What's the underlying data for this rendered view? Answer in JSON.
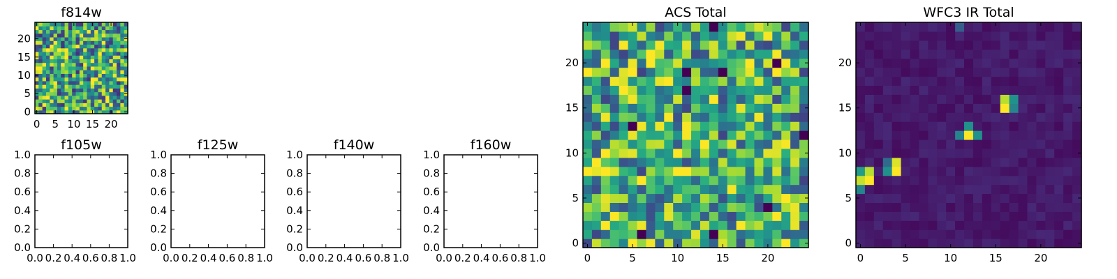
{
  "chart_data": [
    {
      "type": "heatmap",
      "title": "f814w",
      "xlim": [
        -0.5,
        24.5
      ],
      "ylim": [
        -0.5,
        24.5
      ],
      "xticks": [
        0,
        5,
        10,
        15,
        20
      ],
      "yticks": [
        0,
        5,
        10,
        15,
        20
      ],
      "grid_size": 25,
      "colormap": "viridis",
      "pattern": "random noise, high values",
      "seed": 814,
      "base": 0.6,
      "spread": 0.45
    },
    {
      "type": "empty",
      "title": "f105w",
      "xlim": [
        0,
        1
      ],
      "ylim": [
        0,
        1
      ],
      "xticks": [
        "0.0",
        "0.2",
        "0.4",
        "0.6",
        "0.8",
        "1.0"
      ],
      "yticks": [
        "0.0",
        "0.2",
        "0.4",
        "0.6",
        "0.8",
        "1.0"
      ]
    },
    {
      "type": "empty",
      "title": "f125w",
      "xlim": [
        0,
        1
      ],
      "ylim": [
        0,
        1
      ],
      "xticks": [
        "0.0",
        "0.2",
        "0.4",
        "0.6",
        "0.8",
        "1.0"
      ],
      "yticks": [
        "0.0",
        "0.2",
        "0.4",
        "0.6",
        "0.8",
        "1.0"
      ]
    },
    {
      "type": "empty",
      "title": "f140w",
      "xlim": [
        0,
        1
      ],
      "ylim": [
        0,
        1
      ],
      "xticks": [
        "0.0",
        "0.2",
        "0.4",
        "0.6",
        "0.8",
        "1.0"
      ],
      "yticks": [
        "0.0",
        "0.2",
        "0.4",
        "0.6",
        "0.8",
        "1.0"
      ]
    },
    {
      "type": "empty",
      "title": "f160w",
      "xlim": [
        0,
        1
      ],
      "ylim": [
        0,
        1
      ],
      "xticks": [
        "0.0",
        "0.2",
        "0.4",
        "0.6",
        "0.8",
        "1.0"
      ],
      "yticks": [
        "0.0",
        "0.2",
        "0.4",
        "0.6",
        "0.8",
        "1.0"
      ]
    },
    {
      "type": "heatmap",
      "title": "ACS Total",
      "xlim": [
        -0.5,
        24.5
      ],
      "ylim": [
        -0.5,
        24.5
      ],
      "xticks": [
        0,
        5,
        10,
        15,
        20
      ],
      "yticks": [
        0,
        5,
        10,
        15,
        20
      ],
      "grid_size": 25,
      "colormap": "viridis",
      "pattern": "random noise, high values",
      "seed": 2024,
      "base": 0.62,
      "spread": 0.42,
      "dark_pixels": [
        [
          11,
          19
        ],
        [
          5,
          13
        ],
        [
          21,
          20
        ],
        [
          24,
          12
        ],
        [
          11,
          17
        ],
        [
          15,
          19
        ],
        [
          20,
          4
        ],
        [
          14,
          24
        ],
        [
          6,
          1
        ],
        [
          14,
          1
        ]
      ]
    },
    {
      "type": "heatmap",
      "title": "WFC3 IR Total",
      "xlim": [
        -0.5,
        24.5
      ],
      "ylim": [
        -0.5,
        24.5
      ],
      "xticks": [
        0,
        5,
        10,
        15,
        20
      ],
      "yticks": [
        0,
        5,
        10,
        15,
        20
      ],
      "grid_size": 25,
      "colormap": "viridis",
      "pattern": "low background with bright sources",
      "seed": 160,
      "base": 0.03,
      "spread": 0.09,
      "bright_pixels": [
        {
          "x": 1,
          "y": 7,
          "v": 1.0
        },
        {
          "x": 1,
          "y": 8,
          "v": 0.9
        },
        {
          "x": 0,
          "y": 7,
          "v": 0.92
        },
        {
          "x": 0,
          "y": 8,
          "v": 0.55
        },
        {
          "x": 0,
          "y": 6,
          "v": 0.45
        },
        {
          "x": 4,
          "y": 8,
          "v": 1.0
        },
        {
          "x": 4,
          "y": 9,
          "v": 0.95
        },
        {
          "x": 3,
          "y": 8,
          "v": 0.5
        },
        {
          "x": 3,
          "y": 9,
          "v": 0.35
        },
        {
          "x": 12,
          "y": 12,
          "v": 1.0
        },
        {
          "x": 12,
          "y": 13,
          "v": 0.5
        },
        {
          "x": 11,
          "y": 12,
          "v": 0.45
        },
        {
          "x": 13,
          "y": 12,
          "v": 0.5
        },
        {
          "x": 16,
          "y": 15,
          "v": 1.0
        },
        {
          "x": 16,
          "y": 16,
          "v": 0.9
        },
        {
          "x": 17,
          "y": 16,
          "v": 0.5
        },
        {
          "x": 17,
          "y": 15,
          "v": 0.45
        },
        {
          "x": 11,
          "y": 24,
          "v": 0.3
        }
      ]
    }
  ]
}
